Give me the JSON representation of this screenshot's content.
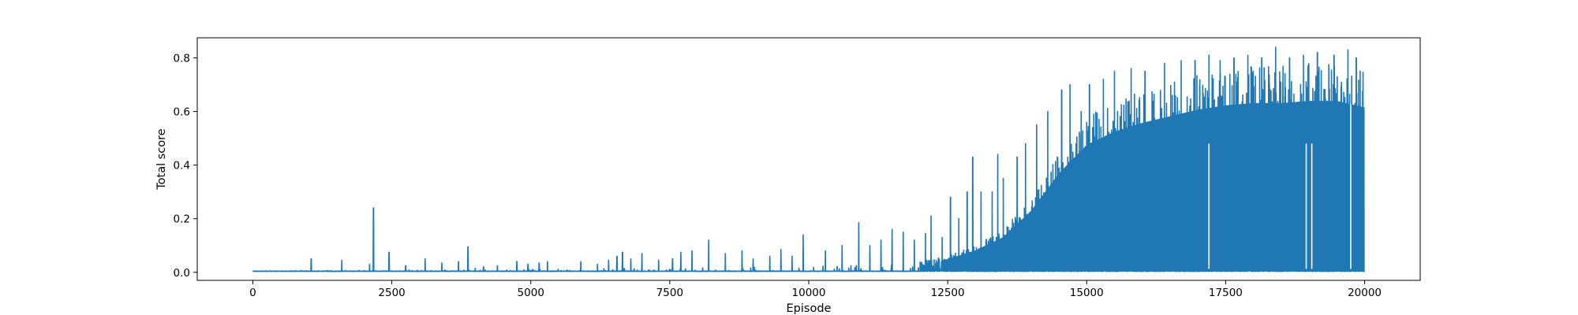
{
  "chart_data": {
    "type": "line",
    "title": "",
    "xlabel": "Episode",
    "ylabel": "Total score",
    "xlim": [
      -1000,
      21000
    ],
    "ylim": [
      -0.03,
      0.875
    ],
    "xticks": [
      0,
      2500,
      5000,
      7500,
      10000,
      12500,
      15000,
      17500,
      20000
    ],
    "xtick_labels": [
      "0",
      "2500",
      "5000",
      "7500",
      "10000",
      "12500",
      "15000",
      "17500",
      "20000"
    ],
    "yticks": [
      0.0,
      0.2,
      0.4,
      0.6,
      0.8
    ],
    "ytick_labels": [
      "0.0",
      "0.2",
      "0.4",
      "0.6",
      "0.8"
    ],
    "grid": false,
    "legend": "none",
    "line_color": "#1f77b4",
    "series": [
      {
        "episodes": 20000,
        "baseline": 0.003,
        "envelope_x": [
          0,
          2000,
          4000,
          6000,
          8000,
          10000,
          11000,
          12000,
          12500,
          13000,
          13500,
          14000,
          14500,
          15000,
          15500,
          16000,
          16500,
          17000,
          17500,
          18000,
          18500,
          19000,
          19500,
          20000
        ],
        "envelope_y": [
          0.004,
          0.005,
          0.006,
          0.01,
          0.015,
          0.02,
          0.025,
          0.04,
          0.06,
          0.1,
          0.16,
          0.28,
          0.45,
          0.58,
          0.64,
          0.68,
          0.71,
          0.74,
          0.76,
          0.77,
          0.77,
          0.78,
          0.78,
          0.75
        ],
        "peaks": [
          [
            1050,
            0.05
          ],
          [
            1600,
            0.045
          ],
          [
            2100,
            0.03
          ],
          [
            2170,
            0.24
          ],
          [
            2450,
            0.075
          ],
          [
            2750,
            0.025
          ],
          [
            3100,
            0.05
          ],
          [
            3400,
            0.035
          ],
          [
            3700,
            0.04
          ],
          [
            3870,
            0.095
          ],
          [
            4000,
            0.015
          ],
          [
            4150,
            0.02
          ],
          [
            4400,
            0.025
          ],
          [
            4750,
            0.04
          ],
          [
            4950,
            0.03
          ],
          [
            5150,
            0.035
          ],
          [
            5300,
            0.04
          ],
          [
            5900,
            0.04
          ],
          [
            6200,
            0.03
          ],
          [
            6400,
            0.045
          ],
          [
            6550,
            0.06
          ],
          [
            6650,
            0.075
          ],
          [
            6800,
            0.05
          ],
          [
            7000,
            0.07
          ],
          [
            7300,
            0.045
          ],
          [
            7550,
            0.05
          ],
          [
            7700,
            0.075
          ],
          [
            7900,
            0.08
          ],
          [
            8200,
            0.12
          ],
          [
            8500,
            0.07
          ],
          [
            8800,
            0.08
          ],
          [
            9000,
            0.05
          ],
          [
            9300,
            0.06
          ],
          [
            9500,
            0.085
          ],
          [
            9700,
            0.06
          ],
          [
            9900,
            0.14
          ],
          [
            10300,
            0.08
          ],
          [
            10600,
            0.1
          ],
          [
            10900,
            0.185
          ],
          [
            11100,
            0.1
          ],
          [
            11300,
            0.12
          ],
          [
            11500,
            0.16
          ],
          [
            11700,
            0.15
          ],
          [
            11900,
            0.12
          ],
          [
            12100,
            0.145
          ],
          [
            12200,
            0.21
          ],
          [
            12400,
            0.13
          ],
          [
            12550,
            0.28
          ],
          [
            12700,
            0.2
          ],
          [
            12850,
            0.3
          ],
          [
            12950,
            0.43
          ],
          [
            13100,
            0.3
          ],
          [
            13300,
            0.3
          ],
          [
            13400,
            0.44
          ],
          [
            13500,
            0.35
          ],
          [
            13750,
            0.43
          ],
          [
            13900,
            0.48
          ],
          [
            14100,
            0.55
          ],
          [
            14300,
            0.6
          ],
          [
            14550,
            0.68
          ],
          [
            14700,
            0.7
          ],
          [
            14900,
            0.6
          ],
          [
            15050,
            0.7
          ],
          [
            15300,
            0.72
          ],
          [
            15500,
            0.75
          ],
          [
            15800,
            0.76
          ],
          [
            16050,
            0.75
          ],
          [
            16400,
            0.78
          ],
          [
            16700,
            0.79
          ],
          [
            16950,
            0.79
          ],
          [
            17200,
            0.81
          ],
          [
            17400,
            0.79
          ],
          [
            17650,
            0.8
          ],
          [
            17900,
            0.81
          ],
          [
            18150,
            0.8
          ],
          [
            18400,
            0.84
          ],
          [
            18650,
            0.8
          ],
          [
            18900,
            0.81
          ],
          [
            19150,
            0.82
          ],
          [
            19450,
            0.81
          ],
          [
            19700,
            0.83
          ],
          [
            19850,
            0.8
          ]
        ],
        "dips": [
          [
            17200,
            0.08
          ],
          [
            18950,
            0.15
          ],
          [
            19050,
            0.03
          ],
          [
            19750,
            0.38
          ]
        ]
      }
    ]
  }
}
